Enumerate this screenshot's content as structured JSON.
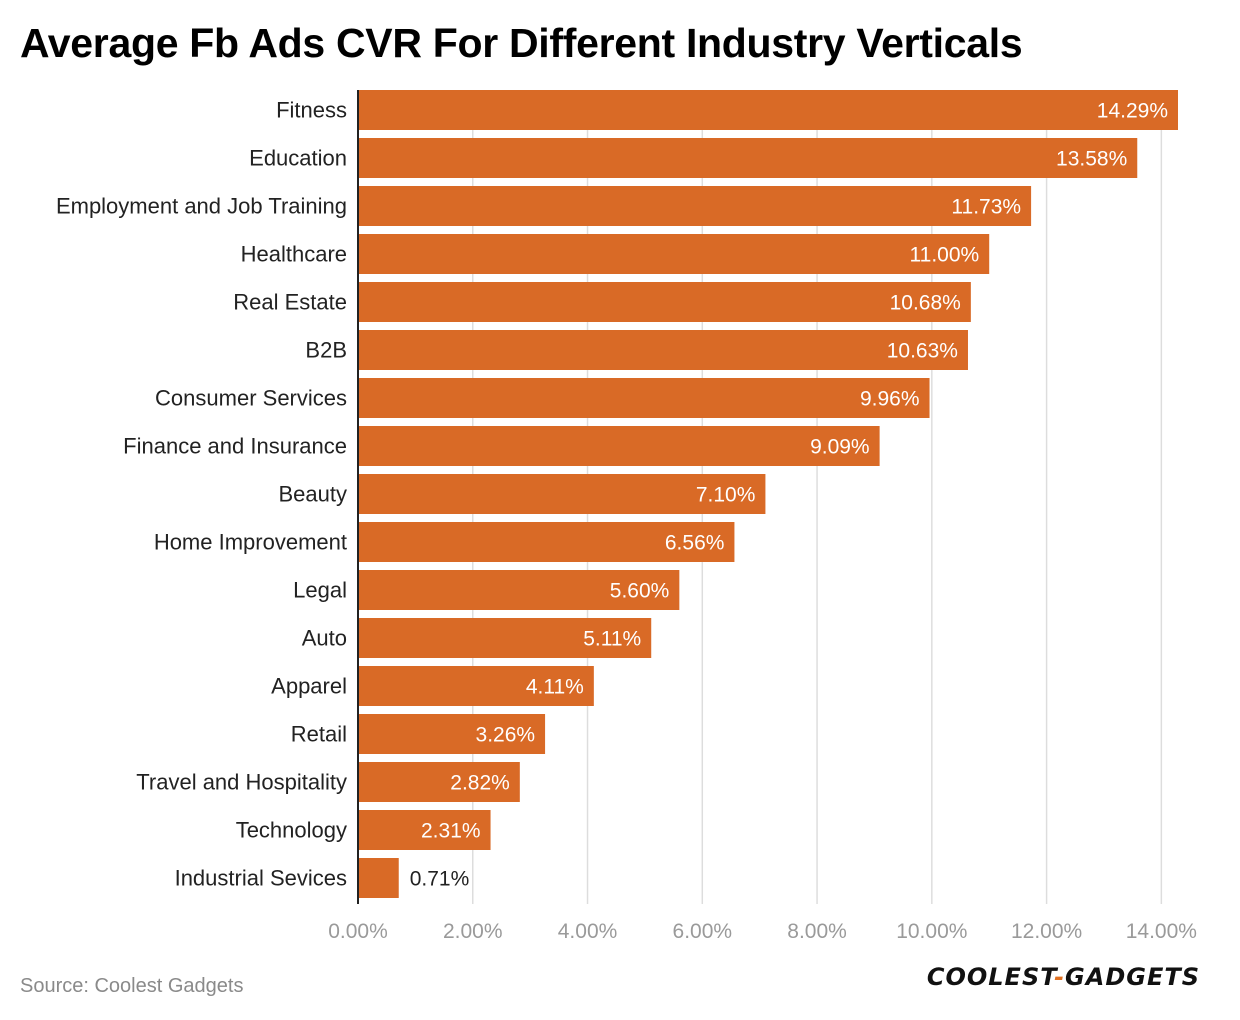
{
  "page": {
    "title": "Average Fb Ads CVR For Different Industry Verticals",
    "source": "Source: Coolest Gadgets",
    "logo": {
      "left": "COOLEST",
      "sep": "-",
      "right": "GADGETS"
    }
  },
  "colors": {
    "bar": "#D96A26",
    "grid": "#DDDDDD",
    "axis_text": "#9A9A9A",
    "label_text": "#222222",
    "value_inside": "#FFFFFF",
    "value_outside": "#222222"
  },
  "chart_data": {
    "type": "bar",
    "orientation": "horizontal",
    "title": "Average Fb Ads CVR For Different Industry Verticals",
    "categories": [
      "Fitness",
      "Education",
      "Employment and Job Training",
      "Healthcare",
      "Real Estate",
      "B2B",
      "Consumer Services",
      "Finance and Insurance",
      "Beauty",
      "Home Improvement",
      "Legal",
      "Auto",
      "Apparel",
      "Retail",
      "Travel and Hospitality",
      "Technology",
      "Industrial Sevices"
    ],
    "values": [
      14.29,
      13.58,
      11.73,
      11.0,
      10.68,
      10.63,
      9.96,
      9.09,
      7.1,
      6.56,
      5.6,
      5.11,
      4.11,
      3.26,
      2.82,
      2.31,
      0.71
    ],
    "value_labels": [
      "14.29%",
      "13.58%",
      "11.73%",
      "11.00%",
      "10.68%",
      "10.63%",
      "9.96%",
      "9.09%",
      "7.10%",
      "6.56%",
      "5.60%",
      "5.11%",
      "4.11%",
      "3.26%",
      "2.82%",
      "2.31%",
      "0.71%"
    ],
    "x_ticks": [
      0,
      2,
      4,
      6,
      8,
      10,
      12,
      14
    ],
    "x_tick_labels": [
      "0.00%",
      "2.00%",
      "4.00%",
      "6.00%",
      "8.00%",
      "10.00%",
      "12.00%",
      "14.00%"
    ],
    "xlim": [
      0,
      14.29
    ],
    "xlabel": "",
    "ylabel": "",
    "grid": true,
    "legend": "none"
  }
}
